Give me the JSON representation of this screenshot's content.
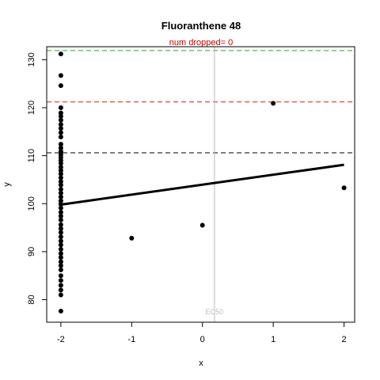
{
  "chart_data": {
    "type": "scatter",
    "title": "Fluoranthene 48",
    "subtitle": "num dropped= 0",
    "xlabel": "x",
    "ylabel": "y",
    "xlim": [
      -2.2,
      2.15
    ],
    "ylim": [
      75.3,
      132.7
    ],
    "xticks": [
      -2,
      -1,
      0,
      1,
      2
    ],
    "yticks": [
      80,
      90,
      100,
      110,
      120,
      130
    ],
    "grid": false,
    "points": [
      {
        "x": -2,
        "y": 131.2
      },
      {
        "x": -2,
        "y": 126.7
      },
      {
        "x": -2,
        "y": 124.6
      },
      {
        "x": -2,
        "y": 120.0
      },
      {
        "x": -2,
        "y": 118.9
      },
      {
        "x": -2,
        "y": 118.2
      },
      {
        "x": -2,
        "y": 117.4
      },
      {
        "x": -2,
        "y": 116.5
      },
      {
        "x": -2,
        "y": 115.7
      },
      {
        "x": -2,
        "y": 114.8
      },
      {
        "x": -2,
        "y": 113.9
      },
      {
        "x": -2,
        "y": 112.4
      },
      {
        "x": -2,
        "y": 111.6
      },
      {
        "x": -2,
        "y": 110.9
      },
      {
        "x": -2,
        "y": 110.2
      },
      {
        "x": -2,
        "y": 109.6
      },
      {
        "x": -2,
        "y": 109.0
      },
      {
        "x": -2,
        "y": 108.4
      },
      {
        "x": -2,
        "y": 107.6
      },
      {
        "x": -2,
        "y": 106.9
      },
      {
        "x": -2,
        "y": 106.2
      },
      {
        "x": -2,
        "y": 105.4
      },
      {
        "x": -2,
        "y": 104.6
      },
      {
        "x": -2,
        "y": 103.9
      },
      {
        "x": -2,
        "y": 103.0
      },
      {
        "x": -2,
        "y": 102.2
      },
      {
        "x": -2,
        "y": 101.4
      },
      {
        "x": -2,
        "y": 100.6
      },
      {
        "x": -2,
        "y": 99.9
      },
      {
        "x": -2,
        "y": 99.1
      },
      {
        "x": -2,
        "y": 98.2
      },
      {
        "x": -2,
        "y": 97.4
      },
      {
        "x": -2,
        "y": 96.6
      },
      {
        "x": -2,
        "y": 95.6
      },
      {
        "x": -2,
        "y": 94.8
      },
      {
        "x": -2,
        "y": 94.0
      },
      {
        "x": -2,
        "y": 93.1
      },
      {
        "x": -2,
        "y": 92.2
      },
      {
        "x": -2,
        "y": 91.4
      },
      {
        "x": -2,
        "y": 90.5
      },
      {
        "x": -2,
        "y": 89.6
      },
      {
        "x": -2,
        "y": 88.8
      },
      {
        "x": -2,
        "y": 87.9
      },
      {
        "x": -2,
        "y": 87.1
      },
      {
        "x": -2,
        "y": 86.2
      },
      {
        "x": -2,
        "y": 85.0
      },
      {
        "x": -2,
        "y": 84.0
      },
      {
        "x": -2,
        "y": 83.0
      },
      {
        "x": -2,
        "y": 82.0
      },
      {
        "x": -2,
        "y": 81.0
      },
      {
        "x": -2,
        "y": 77.6
      },
      {
        "x": -1,
        "y": 92.8
      },
      {
        "x": 0,
        "y": 95.5
      },
      {
        "x": 1,
        "y": 120.9
      },
      {
        "x": 2,
        "y": 103.3
      }
    ],
    "fit_line": {
      "x": [
        -2,
        2
      ],
      "y": [
        99.8,
        108.1
      ],
      "color": "#000000"
    },
    "hlines": [
      {
        "y": 131.9,
        "color": "#22aa22",
        "style": "dashed"
      },
      {
        "y": 121.2,
        "color": "#cc2222",
        "style": "dashed"
      },
      {
        "y": 110.6,
        "color": "#000000",
        "style": "dashed"
      }
    ],
    "vline": {
      "x": 0.17,
      "label": "EC50",
      "color": "#bbbbbb"
    },
    "colors": {
      "subtitle": "#cc0000",
      "points": "#000000"
    }
  }
}
